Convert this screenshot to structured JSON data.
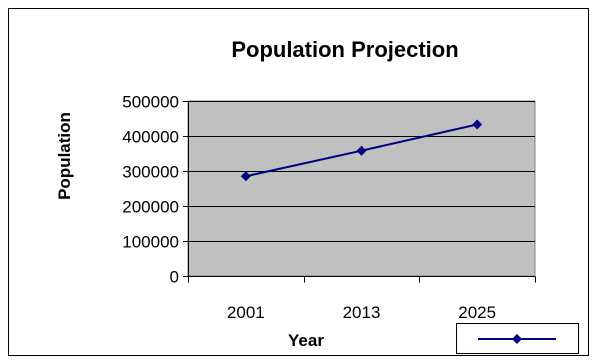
{
  "chart_data": {
    "type": "line",
    "title": "Population Projection",
    "xlabel": "Year",
    "ylabel": "Population",
    "categories": [
      "2001",
      "2013",
      "2025"
    ],
    "series": [
      {
        "values": [
          285000,
          358000,
          433000
        ],
        "color": "#000080",
        "marker": "diamond"
      }
    ],
    "ylim": [
      0,
      500000
    ],
    "yticks": [
      0,
      100000,
      200000,
      300000,
      400000,
      500000
    ],
    "ytick_labels": [
      "0",
      "100000",
      "200000",
      "300000",
      "400000",
      "500000"
    ],
    "grid": true,
    "plot_background": "#c0c0c0",
    "legend": "bottom-right"
  }
}
